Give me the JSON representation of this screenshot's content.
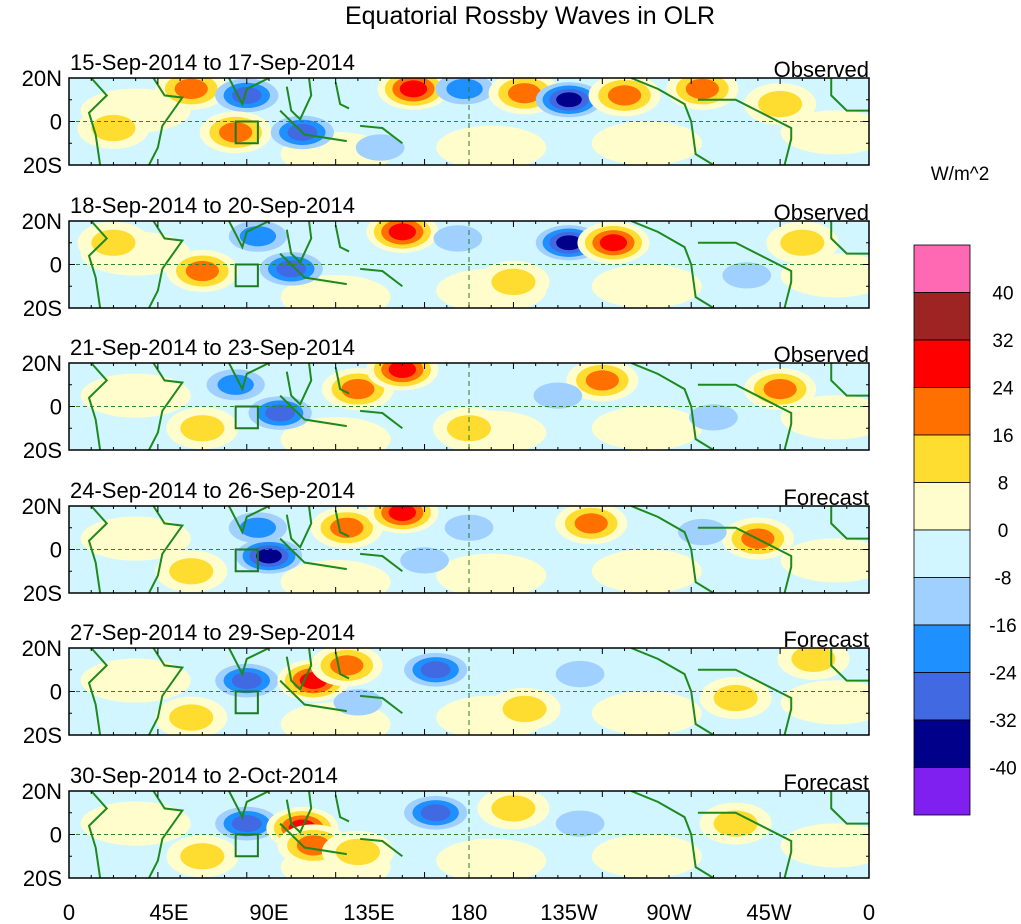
{
  "title": "Equatorial Rossby Waves in OLR",
  "units": "W/m^2",
  "lat_labels": [
    "20N",
    "0",
    "20S"
  ],
  "lon_labels": [
    "0",
    "45E",
    "90E",
    "135E",
    "180",
    "135W",
    "90W",
    "45W",
    "0"
  ],
  "colorbar": {
    "levels": [
      "40",
      "32",
      "24",
      "16",
      "8",
      "0",
      "-8",
      "-16",
      "-24",
      "-32",
      "-40"
    ],
    "colors": [
      "#ff69b4",
      "#9e2424",
      "#ff0000",
      "#ff7000",
      "#ffdd30",
      "#fffdcc",
      "#d2f6ff",
      "#a0d0ff",
      "#1e90ff",
      "#4169e1",
      "#00008b",
      "#8020f0"
    ]
  },
  "panels": [
    {
      "dates": "15-Sep-2014 to 17-Sep-2014",
      "status": "Observed",
      "features": [
        [
          55,
          15,
          16
        ],
        [
          80,
          12,
          -24
        ],
        [
          75,
          -5,
          16
        ],
        [
          105,
          -5,
          -24
        ],
        [
          155,
          15,
          24
        ],
        [
          178,
          15,
          -16
        ],
        [
          205,
          13,
          16
        ],
        [
          225,
          10,
          -32
        ],
        [
          250,
          12,
          16
        ],
        [
          285,
          15,
          16
        ],
        [
          320,
          8,
          8
        ],
        [
          140,
          -12,
          -8
        ],
        [
          20,
          -3,
          8
        ]
      ]
    },
    {
      "dates": "18-Sep-2014 to 20-Sep-2014",
      "status": "Observed",
      "features": [
        [
          85,
          13,
          -16
        ],
        [
          100,
          -2,
          -24
        ],
        [
          60,
          -3,
          16
        ],
        [
          150,
          15,
          24
        ],
        [
          175,
          12,
          -8
        ],
        [
          225,
          10,
          -32
        ],
        [
          245,
          10,
          24
        ],
        [
          305,
          -5,
          -8
        ],
        [
          330,
          10,
          8
        ],
        [
          20,
          10,
          8
        ],
        [
          200,
          -8,
          8
        ]
      ]
    },
    {
      "dates": "21-Sep-2014 to 23-Sep-2014",
      "status": "Observed",
      "features": [
        [
          75,
          10,
          -16
        ],
        [
          95,
          -3,
          -24
        ],
        [
          130,
          8,
          16
        ],
        [
          150,
          17,
          24
        ],
        [
          180,
          -10,
          8
        ],
        [
          240,
          12,
          16
        ],
        [
          320,
          8,
          16
        ],
        [
          220,
          5,
          -8
        ],
        [
          60,
          -10,
          8
        ],
        [
          290,
          -5,
          -8
        ]
      ]
    },
    {
      "dates": "24-Sep-2014 to 26-Sep-2014",
      "status": "Forecast",
      "features": [
        [
          85,
          10,
          -16
        ],
        [
          90,
          -3,
          -32
        ],
        [
          125,
          10,
          16
        ],
        [
          150,
          17,
          24
        ],
        [
          160,
          -5,
          -8
        ],
        [
          235,
          12,
          16
        ],
        [
          310,
          5,
          16
        ],
        [
          180,
          10,
          -8
        ],
        [
          285,
          8,
          -8
        ],
        [
          55,
          -10,
          8
        ]
      ]
    },
    {
      "dates": "27-Sep-2014 to 29-Sep-2014",
      "status": "Forecast",
      "features": [
        [
          80,
          5,
          -24
        ],
        [
          110,
          5,
          24
        ],
        [
          125,
          12,
          16
        ],
        [
          165,
          10,
          -24
        ],
        [
          130,
          -5,
          -8
        ],
        [
          205,
          -8,
          8
        ],
        [
          300,
          -3,
          8
        ],
        [
          335,
          15,
          8
        ],
        [
          55,
          -12,
          8
        ],
        [
          230,
          8,
          -8
        ]
      ]
    },
    {
      "dates": "30-Sep-2014 to 2-Oct-2014",
      "status": "Forecast",
      "features": [
        [
          80,
          5,
          -24
        ],
        [
          105,
          3,
          24
        ],
        [
          110,
          -5,
          16
        ],
        [
          165,
          10,
          -24
        ],
        [
          200,
          12,
          8
        ],
        [
          300,
          5,
          8
        ],
        [
          130,
          -8,
          8
        ],
        [
          60,
          -10,
          8
        ],
        [
          230,
          5,
          -8
        ]
      ]
    }
  ]
}
